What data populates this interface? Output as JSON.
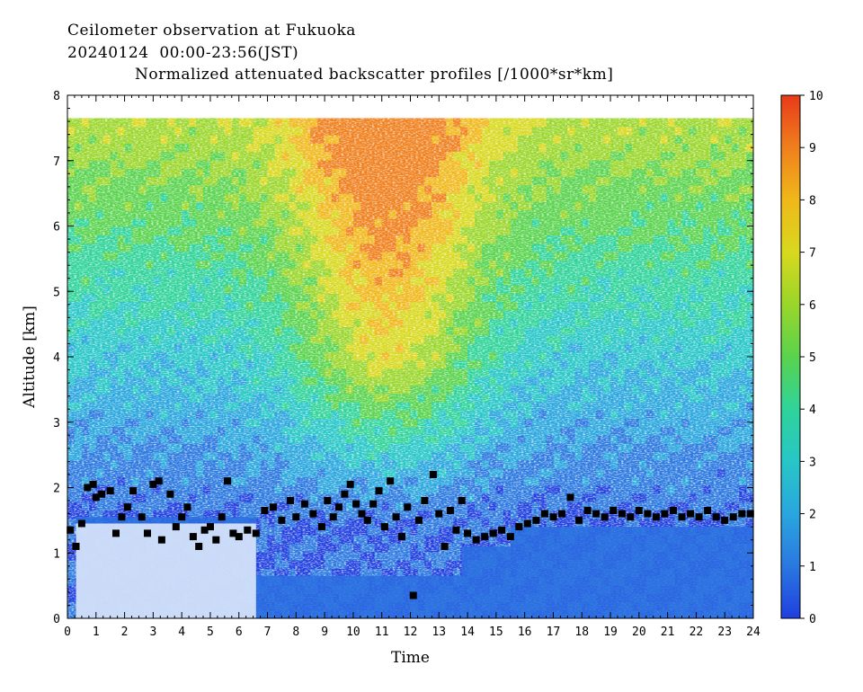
{
  "header": {
    "line1": "Ceilometer observation at Fukuoka",
    "line2": "20240124  00:00-23:56(JST)",
    "line3": "Normalized attenuated backscatter profiles [/1000*sr*km]"
  },
  "chart_data": {
    "type": "heatmap",
    "title": "Normalized attenuated backscatter profiles [/1000*sr*km]",
    "xlabel": "Time",
    "ylabel": "Altitude [km]",
    "xlim": [
      0,
      24
    ],
    "ylim": [
      0,
      8
    ],
    "x_ticks": [
      0,
      1,
      2,
      3,
      4,
      5,
      6,
      7,
      8,
      9,
      10,
      11,
      12,
      13,
      14,
      15,
      16,
      17,
      18,
      19,
      20,
      21,
      22,
      23,
      24
    ],
    "y_ticks": [
      0,
      1,
      2,
      3,
      4,
      5,
      6,
      7,
      8
    ],
    "data_top_altitude": 7.65,
    "colorbar": {
      "min": 0,
      "max": 10,
      "ticks": [
        0,
        1,
        2,
        3,
        4,
        5,
        6,
        7,
        8,
        9,
        10
      ],
      "colors": [
        "#1f3fe0",
        "#2a78e0",
        "#29a6de",
        "#27c6c7",
        "#2fd39a",
        "#59d34d",
        "#9ad62a",
        "#d8d81e",
        "#f0b81a",
        "#f07f1c",
        "#e83a1a"
      ]
    },
    "cloud_base_marker": "black-square",
    "cloud_base_series": [
      {
        "x": 0.1,
        "y": 1.35
      },
      {
        "x": 0.3,
        "y": 1.1
      },
      {
        "x": 0.5,
        "y": 1.45
      },
      {
        "x": 0.7,
        "y": 2.0
      },
      {
        "x": 0.9,
        "y": 2.05
      },
      {
        "x": 1.0,
        "y": 1.85
      },
      {
        "x": 1.2,
        "y": 1.9
      },
      {
        "x": 1.5,
        "y": 1.95
      },
      {
        "x": 1.7,
        "y": 1.3
      },
      {
        "x": 1.9,
        "y": 1.55
      },
      {
        "x": 2.1,
        "y": 1.7
      },
      {
        "x": 2.3,
        "y": 1.95
      },
      {
        "x": 2.6,
        "y": 1.55
      },
      {
        "x": 2.8,
        "y": 1.3
      },
      {
        "x": 3.0,
        "y": 2.05
      },
      {
        "x": 3.2,
        "y": 2.1
      },
      {
        "x": 3.3,
        "y": 1.2
      },
      {
        "x": 3.6,
        "y": 1.9
      },
      {
        "x": 3.8,
        "y": 1.4
      },
      {
        "x": 4.0,
        "y": 1.55
      },
      {
        "x": 4.2,
        "y": 1.7
      },
      {
        "x": 4.4,
        "y": 1.25
      },
      {
        "x": 4.6,
        "y": 1.1
      },
      {
        "x": 4.8,
        "y": 1.35
      },
      {
        "x": 5.0,
        "y": 1.4
      },
      {
        "x": 5.2,
        "y": 1.2
      },
      {
        "x": 5.4,
        "y": 1.55
      },
      {
        "x": 5.6,
        "y": 2.1
      },
      {
        "x": 5.8,
        "y": 1.3
      },
      {
        "x": 6.0,
        "y": 1.25
      },
      {
        "x": 6.3,
        "y": 1.35
      },
      {
        "x": 6.6,
        "y": 1.3
      },
      {
        "x": 6.9,
        "y": 1.65
      },
      {
        "x": 7.2,
        "y": 1.7
      },
      {
        "x": 7.5,
        "y": 1.5
      },
      {
        "x": 7.8,
        "y": 1.8
      },
      {
        "x": 8.0,
        "y": 1.55
      },
      {
        "x": 8.3,
        "y": 1.75
      },
      {
        "x": 8.6,
        "y": 1.6
      },
      {
        "x": 8.9,
        "y": 1.4
      },
      {
        "x": 9.1,
        "y": 1.8
      },
      {
        "x": 9.3,
        "y": 1.55
      },
      {
        "x": 9.5,
        "y": 1.7
      },
      {
        "x": 9.7,
        "y": 1.9
      },
      {
        "x": 9.9,
        "y": 2.05
      },
      {
        "x": 10.1,
        "y": 1.75
      },
      {
        "x": 10.3,
        "y": 1.6
      },
      {
        "x": 10.5,
        "y": 1.5
      },
      {
        "x": 10.7,
        "y": 1.75
      },
      {
        "x": 10.9,
        "y": 1.95
      },
      {
        "x": 11.1,
        "y": 1.4
      },
      {
        "x": 11.3,
        "y": 2.1
      },
      {
        "x": 11.5,
        "y": 1.55
      },
      {
        "x": 11.7,
        "y": 1.25
      },
      {
        "x": 11.9,
        "y": 1.7
      },
      {
        "x": 12.1,
        "y": 0.35
      },
      {
        "x": 12.3,
        "y": 1.5
      },
      {
        "x": 12.5,
        "y": 1.8
      },
      {
        "x": 12.8,
        "y": 2.2
      },
      {
        "x": 13.0,
        "y": 1.6
      },
      {
        "x": 13.2,
        "y": 1.1
      },
      {
        "x": 13.4,
        "y": 1.65
      },
      {
        "x": 13.6,
        "y": 1.35
      },
      {
        "x": 13.8,
        "y": 1.8
      },
      {
        "x": 14.0,
        "y": 1.3
      },
      {
        "x": 14.3,
        "y": 1.2
      },
      {
        "x": 14.6,
        "y": 1.25
      },
      {
        "x": 14.9,
        "y": 1.3
      },
      {
        "x": 15.2,
        "y": 1.35
      },
      {
        "x": 15.5,
        "y": 1.25
      },
      {
        "x": 15.8,
        "y": 1.4
      },
      {
        "x": 16.1,
        "y": 1.45
      },
      {
        "x": 16.4,
        "y": 1.5
      },
      {
        "x": 16.7,
        "y": 1.6
      },
      {
        "x": 17.0,
        "y": 1.55
      },
      {
        "x": 17.3,
        "y": 1.6
      },
      {
        "x": 17.6,
        "y": 1.85
      },
      {
        "x": 17.9,
        "y": 1.5
      },
      {
        "x": 18.2,
        "y": 1.65
      },
      {
        "x": 18.5,
        "y": 1.6
      },
      {
        "x": 18.8,
        "y": 1.55
      },
      {
        "x": 19.1,
        "y": 1.65
      },
      {
        "x": 19.4,
        "y": 1.6
      },
      {
        "x": 19.7,
        "y": 1.55
      },
      {
        "x": 20.0,
        "y": 1.65
      },
      {
        "x": 20.3,
        "y": 1.6
      },
      {
        "x": 20.6,
        "y": 1.55
      },
      {
        "x": 20.9,
        "y": 1.6
      },
      {
        "x": 21.2,
        "y": 1.65
      },
      {
        "x": 21.5,
        "y": 1.55
      },
      {
        "x": 21.8,
        "y": 1.6
      },
      {
        "x": 22.1,
        "y": 1.55
      },
      {
        "x": 22.4,
        "y": 1.65
      },
      {
        "x": 22.7,
        "y": 1.55
      },
      {
        "x": 23.0,
        "y": 1.5
      },
      {
        "x": 23.3,
        "y": 1.55
      },
      {
        "x": 23.6,
        "y": 1.6
      },
      {
        "x": 23.9,
        "y": 1.6
      }
    ],
    "low_signal_zones": [
      {
        "x0": 0.3,
        "x1": 6.6,
        "y0": 0.0,
        "y1": 1.55
      },
      {
        "x0": 6.6,
        "x1": 13.8,
        "y0": 0.0,
        "y1": 0.65
      },
      {
        "x0": 13.8,
        "x1": 15.5,
        "y0": 0.0,
        "y1": 1.1
      },
      {
        "x0": 15.5,
        "x1": 24.0,
        "y0": 0.0,
        "y1": 1.4
      }
    ]
  }
}
